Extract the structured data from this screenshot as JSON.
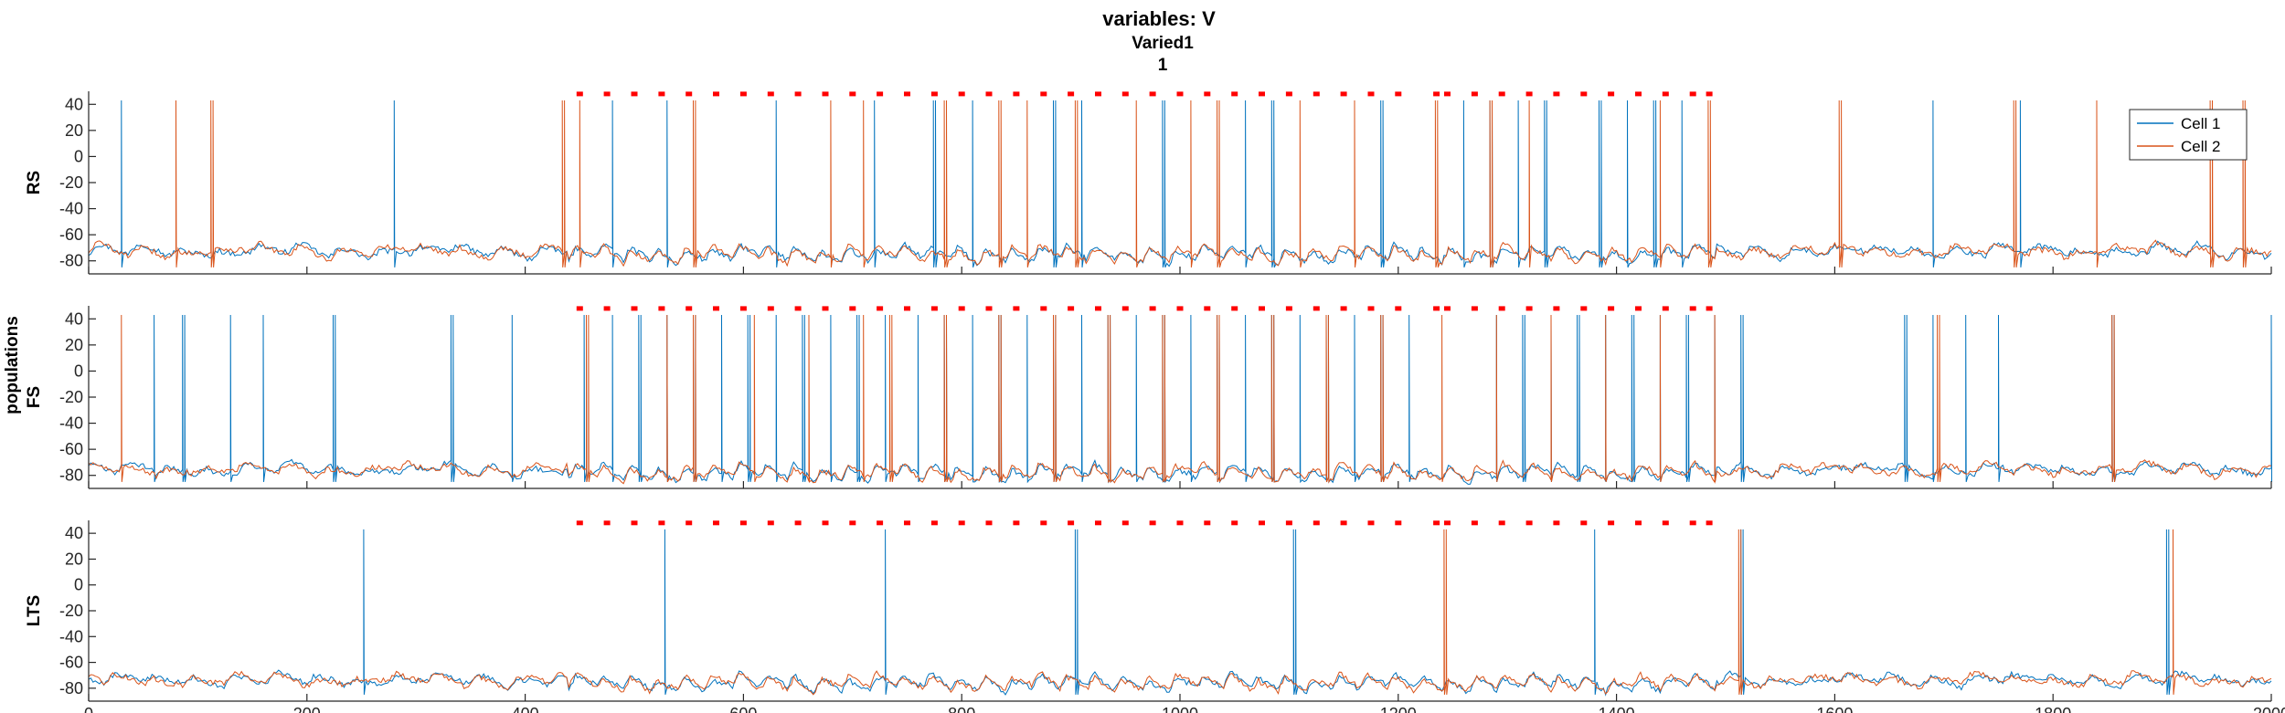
{
  "figure": {
    "title": "variables: V",
    "subtitle": "Varied1",
    "subtitle_value": "1",
    "group_ylabel": "populations"
  },
  "legend": {
    "placement": "top-right",
    "entries": [
      {
        "label": "Cell 1",
        "color": "#0072BD"
      },
      {
        "label": "Cell 2",
        "color": "#D95319"
      }
    ]
  },
  "colors": {
    "cell1": "#0072BD",
    "cell2": "#D95319",
    "marker": "#FF0000",
    "axis": "#262626"
  },
  "chart_data": [
    {
      "type": "line",
      "panel": "RS",
      "ylabel": "RS",
      "xlim": [
        0,
        2000
      ],
      "ylim": [
        -90,
        50
      ],
      "yticks": [
        -80,
        -60,
        -40,
        -20,
        0,
        20,
        40
      ],
      "xticks": [
        0,
        200,
        400,
        600,
        800,
        1000,
        1200,
        1400,
        1600,
        1800,
        2000
      ],
      "show_xtick_labels": false,
      "baseline_mV": -75,
      "oscillation_window": [
        440,
        1490
      ],
      "markers": {
        "y": 48,
        "x": [
          450,
          475,
          500,
          525,
          550,
          575,
          600,
          625,
          650,
          675,
          700,
          725,
          750,
          775,
          800,
          825,
          850,
          875,
          900,
          925,
          950,
          975,
          1000,
          1025,
          1050,
          1075,
          1100,
          1125,
          1150,
          1175,
          1200,
          1235,
          1245,
          1270,
          1295,
          1320,
          1345,
          1370,
          1395,
          1420,
          1445,
          1470,
          1485
        ]
      },
      "series": [
        {
          "name": "Cell 1",
          "spikes": [
            30,
            280,
            480,
            530,
            630,
            720,
            775,
            810,
            885,
            910,
            985,
            1060,
            1085,
            1185,
            1260,
            1285,
            1310,
            1335,
            1385,
            1410,
            1435,
            1460,
            1690,
            1770
          ]
        },
        {
          "name": "Cell 2",
          "spikes": [
            80,
            113,
            435,
            450,
            555,
            680,
            710,
            785,
            835,
            860,
            905,
            960,
            1010,
            1035,
            1110,
            1160,
            1235,
            1285,
            1320,
            1440,
            1485,
            1605,
            1765,
            1840,
            1945,
            1975
          ]
        }
      ]
    },
    {
      "type": "line",
      "panel": "FS",
      "ylabel": "FS",
      "xlim": [
        0,
        2000
      ],
      "ylim": [
        -90,
        50
      ],
      "yticks": [
        -80,
        -60,
        -40,
        -20,
        0,
        20,
        40
      ],
      "xticks": [
        0,
        200,
        400,
        600,
        800,
        1000,
        1200,
        1400,
        1600,
        1800,
        2000
      ],
      "show_xtick_labels": false,
      "baseline_mV": -78,
      "oscillation_window": [
        440,
        1490
      ],
      "markers": {
        "y": 48,
        "x": [
          450,
          475,
          500,
          525,
          550,
          575,
          600,
          625,
          650,
          675,
          700,
          725,
          750,
          775,
          800,
          825,
          850,
          875,
          900,
          925,
          950,
          975,
          1000,
          1025,
          1050,
          1075,
          1100,
          1125,
          1150,
          1175,
          1200,
          1235,
          1245,
          1270,
          1295,
          1320,
          1345,
          1370,
          1395,
          1420,
          1445,
          1470,
          1485
        ]
      },
      "series": [
        {
          "name": "Cell 1",
          "spikes": [
            60,
            87,
            130,
            160,
            225,
            333,
            388,
            455,
            480,
            505,
            530,
            555,
            580,
            605,
            630,
            655,
            680,
            705,
            730,
            760,
            785,
            810,
            835,
            860,
            885,
            910,
            935,
            960,
            985,
            1010,
            1035,
            1060,
            1085,
            1110,
            1135,
            1160,
            1185,
            1210,
            1290,
            1315,
            1340,
            1365,
            1390,
            1415,
            1440,
            1465,
            1490,
            1515,
            1665,
            1690,
            1720,
            1750,
            1855,
            2000
          ]
        },
        {
          "name": "Cell 2",
          "spikes": [
            30,
            457,
            530,
            555,
            610,
            660,
            710,
            735,
            785,
            835,
            885,
            935,
            985,
            1035,
            1085,
            1135,
            1185,
            1240,
            1290,
            1340,
            1390,
            1440,
            1490,
            1695,
            1855
          ]
        }
      ]
    },
    {
      "type": "line",
      "panel": "LTS",
      "ylabel": "LTS",
      "xlim": [
        0,
        2000
      ],
      "ylim": [
        -90,
        50
      ],
      "yticks": [
        -80,
        -60,
        -40,
        -20,
        0,
        20,
        40
      ],
      "xticks": [
        0,
        200,
        400,
        600,
        800,
        1000,
        1200,
        1400,
        1600,
        1800,
        2000
      ],
      "show_xtick_labels": true,
      "baseline_mV": -76,
      "oscillation_window": [
        440,
        1490
      ],
      "markers": {
        "y": 48,
        "x": [
          450,
          475,
          500,
          525,
          550,
          575,
          600,
          625,
          650,
          675,
          700,
          725,
          750,
          775,
          800,
          825,
          850,
          875,
          900,
          925,
          950,
          975,
          1000,
          1025,
          1050,
          1075,
          1100,
          1125,
          1150,
          1175,
          1200,
          1235,
          1245,
          1270,
          1295,
          1320,
          1345,
          1370,
          1395,
          1420,
          1445,
          1470,
          1485
        ]
      },
      "series": [
        {
          "name": "Cell 1",
          "spikes": [
            252,
            528,
            730,
            905,
            1105,
            1380,
            1515,
            1905
          ]
        },
        {
          "name": "Cell 2",
          "spikes": [
            1243,
            1513,
            1910
          ]
        }
      ]
    }
  ]
}
